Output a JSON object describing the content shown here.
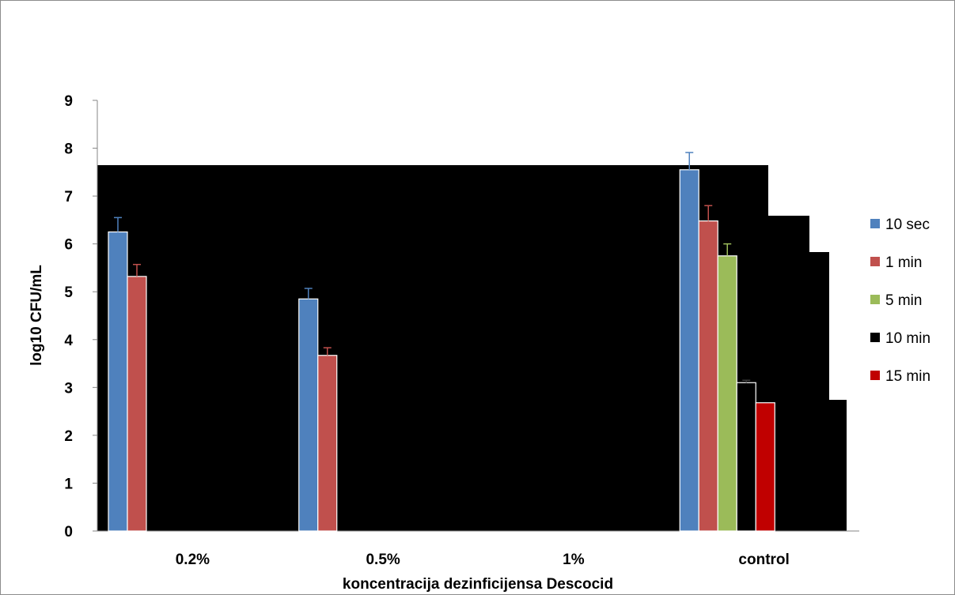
{
  "chart_data": {
    "type": "bar",
    "categories": [
      "0.2%",
      "0.5%",
      "1%",
      "control"
    ],
    "series": [
      {
        "name": "10 sec",
        "color": "#4f81bd",
        "values": [
          6.25,
          4.85,
          0,
          7.55
        ],
        "errors": [
          0.3,
          0.22,
          0,
          0.36
        ]
      },
      {
        "name": "1 min",
        "color": "#c0504d",
        "values": [
          5.32,
          3.67,
          0,
          6.48
        ],
        "errors": [
          0.25,
          0.16,
          0,
          0.32
        ]
      },
      {
        "name": "5 min",
        "color": "#9bbb59",
        "values": [
          0,
          0,
          0,
          5.75
        ],
        "errors": [
          0,
          0,
          0,
          0.25
        ]
      },
      {
        "name": "10 min",
        "color": "#000000",
        "values": [
          0,
          0,
          0,
          3.1
        ],
        "errors": [
          0,
          0,
          0,
          0.05
        ]
      },
      {
        "name": "15 min",
        "color": "#c00000",
        "values": [
          0,
          0,
          0,
          2.68
        ],
        "errors": [
          0,
          0,
          0,
          0
        ]
      }
    ],
    "xlabel": "koncentracija dezinficijensa Descocid",
    "ylabel": "log10 CFU/mL",
    "ylim": [
      0,
      9
    ],
    "yticks": [
      0,
      1,
      2,
      3,
      4,
      5,
      6,
      7,
      8,
      9
    ],
    "grid": false,
    "legend": "right"
  }
}
